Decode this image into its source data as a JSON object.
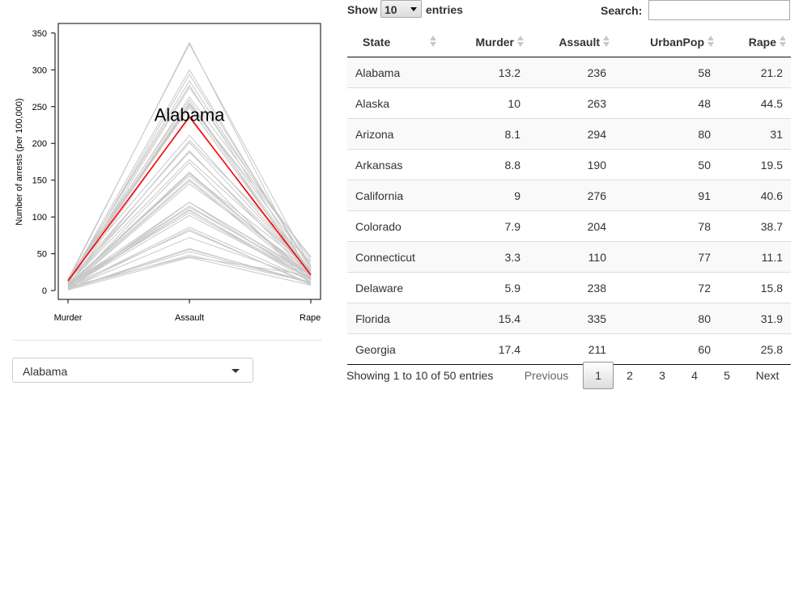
{
  "chart_data": {
    "type": "line",
    "ylabel": "Number of arrests (per 100,000)",
    "xlabel": "",
    "categories": [
      "Murder",
      "Assault",
      "Rape"
    ],
    "yticks": [
      0,
      50,
      100,
      150,
      200,
      250,
      300,
      350
    ],
    "ylim": [
      -12,
      363
    ],
    "highlight": {
      "name": "Alabama",
      "values": [
        13.2,
        236,
        21.2
      ],
      "color": "#ff0000"
    },
    "background_color": "#c8c8c8",
    "series": [
      {
        "values": [
          13.2,
          236,
          21.2
        ]
      },
      {
        "values": [
          10,
          263,
          44.5
        ]
      },
      {
        "values": [
          8.1,
          294,
          31
        ]
      },
      {
        "values": [
          8.8,
          190,
          19.5
        ]
      },
      {
        "values": [
          9,
          276,
          40.6
        ]
      },
      {
        "values": [
          7.9,
          204,
          38.7
        ]
      },
      {
        "values": [
          3.3,
          110,
          11.1
        ]
      },
      {
        "values": [
          5.9,
          238,
          15.8
        ]
      },
      {
        "values": [
          15.4,
          335,
          31.9
        ]
      },
      {
        "values": [
          17.4,
          211,
          25.8
        ]
      },
      {
        "values": [
          5.3,
          46,
          20.2
        ]
      },
      {
        "values": [
          2.6,
          120,
          14.2
        ]
      },
      {
        "values": [
          10.4,
          249,
          24
        ]
      },
      {
        "values": [
          7.2,
          113,
          21
        ]
      },
      {
        "values": [
          2.2,
          56,
          11.3
        ]
      },
      {
        "values": [
          6,
          115,
          18
        ]
      },
      {
        "values": [
          9.7,
          109,
          16.3
        ]
      },
      {
        "values": [
          15.4,
          249,
          22.2
        ]
      },
      {
        "values": [
          2.1,
          83,
          7.8
        ]
      },
      {
        "values": [
          11.3,
          300,
          27.8
        ]
      },
      {
        "values": [
          4.4,
          149,
          16.3
        ]
      },
      {
        "values": [
          12.1,
          255,
          35.1
        ]
      },
      {
        "values": [
          2.7,
          72,
          14.9
        ]
      },
      {
        "values": [
          16.1,
          259,
          17.1
        ]
      },
      {
        "values": [
          9,
          178,
          28.2
        ]
      },
      {
        "values": [
          6,
          109,
          16.4
        ]
      },
      {
        "values": [
          4.3,
          102,
          16.5
        ]
      },
      {
        "values": [
          12.2,
          252,
          46
        ]
      },
      {
        "values": [
          2.1,
          57,
          9.5
        ]
      },
      {
        "values": [
          7.4,
          159,
          18.8
        ]
      },
      {
        "values": [
          11.4,
          285,
          32.1
        ]
      },
      {
        "values": [
          11.1,
          254,
          26.1
        ]
      },
      {
        "values": [
          13,
          337,
          16.1
        ]
      },
      {
        "values": [
          0.8,
          45,
          7.3
        ]
      },
      {
        "values": [
          7.3,
          120,
          21.4
        ]
      },
      {
        "values": [
          6.6,
          151,
          20
        ]
      },
      {
        "values": [
          4.9,
          159,
          29.3
        ]
      },
      {
        "values": [
          6.3,
          106,
          14.9
        ]
      },
      {
        "values": [
          3.4,
          174,
          8.3
        ]
      },
      {
        "values": [
          14.4,
          279,
          22.5
        ]
      },
      {
        "values": [
          3.8,
          86,
          12.8
        ]
      },
      {
        "values": [
          13.2,
          188,
          26.9
        ]
      },
      {
        "values": [
          12.7,
          201,
          25.5
        ]
      },
      {
        "values": [
          3.2,
          120,
          22.9
        ]
      },
      {
        "values": [
          2.2,
          48,
          11.2
        ]
      },
      {
        "values": [
          8.5,
          156,
          20.7
        ]
      },
      {
        "values": [
          4,
          145,
          26.2
        ]
      },
      {
        "values": [
          5.7,
          81,
          9.3
        ]
      },
      {
        "values": [
          2.6,
          53,
          10.8
        ]
      },
      {
        "values": [
          6.8,
          161,
          15.6
        ]
      }
    ]
  },
  "state_select": {
    "value": "Alabama"
  },
  "length": {
    "show": "Show",
    "value": "10",
    "entries": "entries"
  },
  "search": {
    "label": "Search:",
    "value": ""
  },
  "table": {
    "headers": {
      "state": "State",
      "murder": "Murder",
      "assault": "Assault",
      "urbanpop": "UrbanPop",
      "rape": "Rape"
    },
    "rows": [
      {
        "state": "Alabama",
        "murder": "13.2",
        "assault": "236",
        "urbanpop": "58",
        "rape": "21.2"
      },
      {
        "state": "Alaska",
        "murder": "10",
        "assault": "263",
        "urbanpop": "48",
        "rape": "44.5"
      },
      {
        "state": "Arizona",
        "murder": "8.1",
        "assault": "294",
        "urbanpop": "80",
        "rape": "31"
      },
      {
        "state": "Arkansas",
        "murder": "8.8",
        "assault": "190",
        "urbanpop": "50",
        "rape": "19.5"
      },
      {
        "state": "California",
        "murder": "9",
        "assault": "276",
        "urbanpop": "91",
        "rape": "40.6"
      },
      {
        "state": "Colorado",
        "murder": "7.9",
        "assault": "204",
        "urbanpop": "78",
        "rape": "38.7"
      },
      {
        "state": "Connecticut",
        "murder": "3.3",
        "assault": "110",
        "urbanpop": "77",
        "rape": "11.1"
      },
      {
        "state": "Delaware",
        "murder": "5.9",
        "assault": "238",
        "urbanpop": "72",
        "rape": "15.8"
      },
      {
        "state": "Florida",
        "murder": "15.4",
        "assault": "335",
        "urbanpop": "80",
        "rape": "31.9"
      },
      {
        "state": "Georgia",
        "murder": "17.4",
        "assault": "211",
        "urbanpop": "60",
        "rape": "25.8"
      }
    ]
  },
  "info": "Showing 1 to 10 of 50 entries",
  "pagination": {
    "previous": "Previous",
    "pages": [
      "1",
      "2",
      "3",
      "4",
      "5"
    ],
    "current": "1",
    "next": "Next"
  }
}
